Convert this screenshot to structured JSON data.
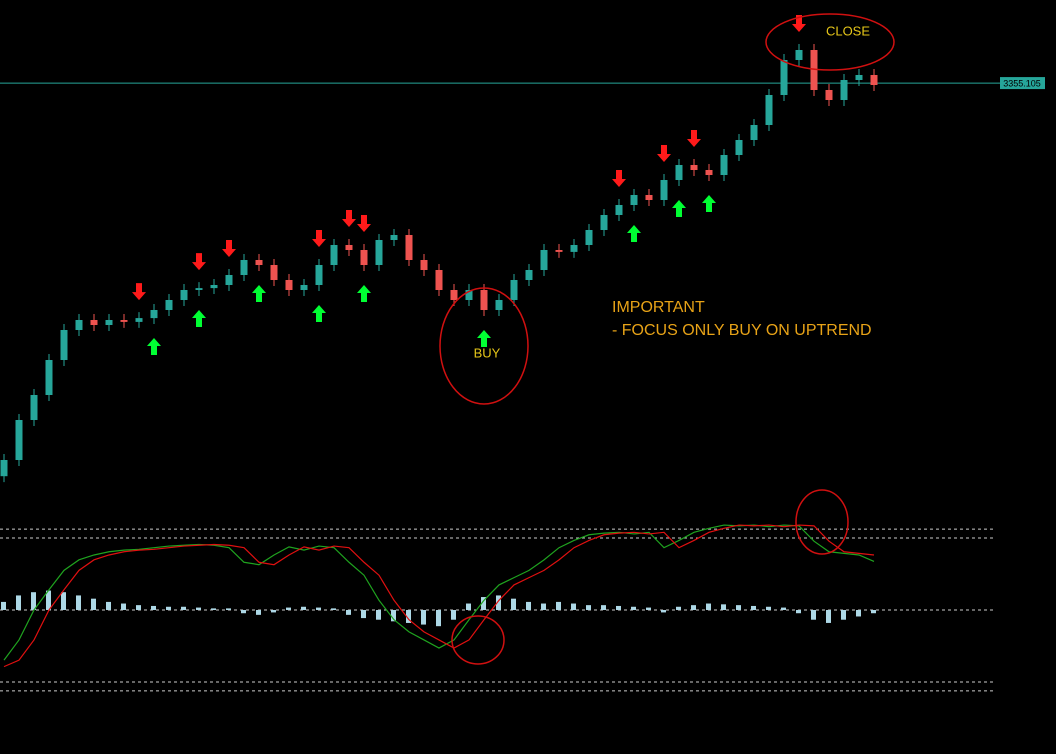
{
  "chart_data": [
    {
      "type": "candlestick",
      "open": [
        3190,
        3196.8,
        3213.6,
        3224.1,
        3238.8,
        3251.4,
        3255.6,
        3253.5,
        3255.6,
        3254.8,
        3256.4,
        3259.8,
        3264.0,
        3268.2,
        3269.0,
        3270.3,
        3274.5,
        3280.8,
        3278.7,
        3272.4,
        3268.2,
        3270.3,
        3278.7,
        3287.1,
        3285.0,
        3278.7,
        3289.2,
        3291.3,
        3280.8,
        3276.6,
        3268.2,
        3264.0,
        3268.2,
        3259.8,
        3264.0,
        3272.4,
        3276.6,
        3285.0,
        3284.2,
        3287.1,
        3293.4,
        3299.7,
        3303.9,
        3308.1,
        3306.0,
        3314.4,
        3320.7,
        3318.6,
        3316.5,
        3324.9,
        3331.2,
        3337.5,
        3350.1,
        3364.8,
        3369.0,
        3352.2,
        3348.0,
        3356.4,
        3358.5
      ],
      "high": [
        3199.3,
        3216.1,
        3226.6,
        3241.3,
        3253.9,
        3258.1,
        3258.1,
        3258.1,
        3258.1,
        3258.9,
        3262.3,
        3266.5,
        3270.7,
        3271.5,
        3272.8,
        3277.0,
        3283.3,
        3283.3,
        3281.2,
        3274.9,
        3272.8,
        3281.2,
        3289.6,
        3289.6,
        3287.5,
        3291.7,
        3293.8,
        3293.8,
        3283.3,
        3279.1,
        3270.7,
        3270.7,
        3270.7,
        3266.5,
        3274.9,
        3279.1,
        3287.5,
        3287.5,
        3289.6,
        3295.9,
        3302.2,
        3306.4,
        3310.6,
        3310.6,
        3316.9,
        3323.2,
        3323.2,
        3321.1,
        3327.4,
        3333.7,
        3340.0,
        3352.6,
        3367.3,
        3371.5,
        3371.5,
        3354.7,
        3358.9,
        3361.0,
        3361.0
      ],
      "low": [
        3187.5,
        3194.3,
        3211.1,
        3221.6,
        3236.3,
        3248.9,
        3251.0,
        3251.0,
        3252.3,
        3252.3,
        3253.9,
        3257.3,
        3261.5,
        3265.7,
        3266.5,
        3267.8,
        3272.0,
        3276.2,
        3269.9,
        3265.7,
        3265.7,
        3267.8,
        3276.2,
        3282.5,
        3276.2,
        3276.2,
        3286.7,
        3278.3,
        3274.1,
        3265.7,
        3261.5,
        3261.5,
        3257.3,
        3257.3,
        3261.5,
        3269.9,
        3274.1,
        3281.7,
        3281.7,
        3284.6,
        3290.9,
        3297.2,
        3301.4,
        3303.5,
        3303.5,
        3311.9,
        3316.1,
        3314.0,
        3314.0,
        3322.4,
        3328.7,
        3335.0,
        3347.6,
        3362.3,
        3349.7,
        3345.5,
        3345.5,
        3353.9,
        3351.8
      ],
      "close": [
        3196.8,
        3213.6,
        3224.1,
        3238.8,
        3251.4,
        3255.6,
        3253.5,
        3255.6,
        3254.8,
        3256.4,
        3259.8,
        3264.0,
        3268.2,
        3269.0,
        3270.3,
        3274.5,
        3280.8,
        3278.7,
        3272.4,
        3268.2,
        3270.3,
        3278.7,
        3287.1,
        3285.0,
        3278.7,
        3289.2,
        3291.3,
        3280.8,
        3276.6,
        3268.2,
        3264.0,
        3268.2,
        3259.8,
        3264.0,
        3272.4,
        3276.6,
        3285.0,
        3284.2,
        3287.1,
        3293.4,
        3299.7,
        3303.9,
        3308.1,
        3306.0,
        3314.4,
        3320.7,
        3318.6,
        3316.5,
        3324.9,
        3331.2,
        3337.5,
        3350.1,
        3364.8,
        3369.0,
        3352.2,
        3348.0,
        3356.4,
        3358.5,
        3354.3
      ],
      "up_color": "#26a69a",
      "down_color": "#ef5350",
      "ylim": [
        3180,
        3390
      ],
      "price_line": 3355.105,
      "price_line_color": "#26a69a",
      "buy_arrows": [
        10,
        13,
        17,
        21,
        24,
        32,
        42,
        45,
        47
      ],
      "buy_color": "#00ff33",
      "sell_arrows": [
        9,
        13,
        15,
        21,
        23,
        24,
        41,
        44,
        46,
        53
      ],
      "sell_color": "#ff1a1a"
    },
    {
      "type": "oscillator",
      "ylim": [
        -110,
        110
      ],
      "levels": [
        100,
        89,
        0,
        -89,
        -100
      ],
      "series": [
        {
          "color": "#1fa31f",
          "values": [
            -62,
            -37,
            0,
            25,
            49,
            62,
            68,
            72,
            74,
            75,
            77,
            79,
            80,
            81,
            80,
            77,
            59,
            56,
            68,
            78,
            74,
            79,
            77,
            59,
            43,
            12,
            -12,
            -27,
            -37,
            -47,
            -37,
            -12,
            12,
            31,
            40,
            49,
            62,
            77,
            86,
            93,
            95,
            96,
            94,
            96,
            77,
            86,
            96,
            101,
            105,
            104,
            105,
            103,
            105,
            104,
            85,
            72,
            70,
            68,
            60
          ]
        },
        {
          "color": "#e01010",
          "values": [
            -70,
            -62,
            -37,
            0,
            25,
            49,
            62,
            68,
            72,
            74,
            75,
            77,
            79,
            80,
            81,
            80,
            77,
            59,
            56,
            68,
            78,
            74,
            79,
            77,
            59,
            43,
            12,
            -12,
            -27,
            -37,
            -47,
            -37,
            -12,
            12,
            31,
            40,
            49,
            62,
            77,
            86,
            93,
            95,
            96,
            94,
            96,
            77,
            86,
            96,
            101,
            105,
            104,
            105,
            103,
            105,
            104,
            85,
            72,
            70,
            68
          ]
        }
      ],
      "histogram": {
        "color": "#add8e6",
        "values": [
          10,
          18,
          22,
          24,
          22,
          18,
          14,
          10,
          8,
          6,
          5,
          4,
          4,
          3,
          2,
          2,
          -4,
          -6,
          -3,
          3,
          4,
          3,
          2,
          -6,
          -10,
          -12,
          -14,
          -16,
          -18,
          -20,
          -12,
          8,
          16,
          18,
          14,
          10,
          8,
          10,
          8,
          6,
          6,
          5,
          4,
          3,
          -3,
          4,
          6,
          8,
          7,
          6,
          5,
          4,
          3,
          -4,
          -12,
          -16,
          -12,
          -8,
          -4
        ]
      }
    }
  ],
  "annotations": {
    "close": "CLOSE",
    "buy": "BUY",
    "important": "IMPORTANT",
    "focus": "- FOCUS ONLY BUY ON UPTREND"
  }
}
